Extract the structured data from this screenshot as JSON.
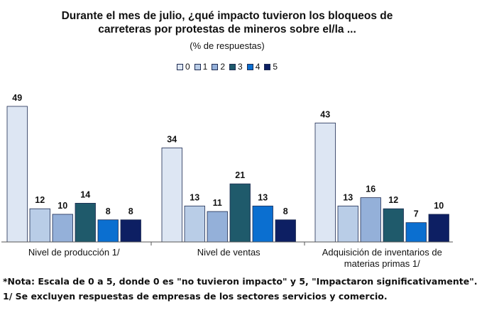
{
  "chart_data": {
    "type": "bar",
    "title_lines": [
      "Durante el mes de julio, ¿qué impacto tuvieron los bloqueos de",
      "carreteras por protestas de mineros sobre el/la ..."
    ],
    "subtitle": "(% de respuestas)",
    "categories": [
      [
        "Nivel de producción 1/"
      ],
      [
        "Nivel de ventas"
      ],
      [
        "Adquisición de inventarios de",
        "materias primas 1/"
      ]
    ],
    "series": [
      {
        "name": "0",
        "values": [
          49,
          34,
          43
        ],
        "color": "#dde6f3"
      },
      {
        "name": "1",
        "values": [
          12,
          13,
          13
        ],
        "color": "#b9cde7"
      },
      {
        "name": "2",
        "values": [
          10,
          11,
          16
        ],
        "color": "#94b0d9"
      },
      {
        "name": "3",
        "values": [
          14,
          21,
          12
        ],
        "color": "#1f5a6b"
      },
      {
        "name": "4",
        "values": [
          8,
          13,
          7
        ],
        "color": "#0b6fd0"
      },
      {
        "name": "5",
        "values": [
          8,
          8,
          10
        ],
        "color": "#0d1f63"
      }
    ],
    "ylim": [
      0,
      50
    ],
    "legend_position": "top",
    "grid": false,
    "data_labels": true
  },
  "notes": [
    "*Nota: Escala de 0 a 5, donde 0 es \"no tuvieron impacto\" y 5, \"Impactaron significativamente\".",
    "1/  Se excluyen respuestas de empresas de los sectores servicios y comercio."
  ]
}
